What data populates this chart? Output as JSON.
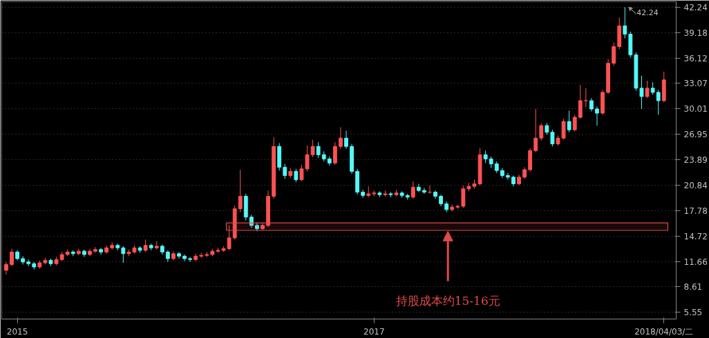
{
  "chart_data": {
    "type": "candlestick",
    "categories": [
      null,
      null,
      "2015",
      null,
      null,
      null,
      null,
      null,
      null,
      null,
      null,
      null,
      null,
      null,
      null,
      null,
      null,
      null,
      null,
      null,
      null,
      null,
      null,
      null,
      null,
      null,
      null,
      null,
      null,
      null,
      null,
      null,
      null,
      null,
      null,
      null,
      null,
      null,
      null,
      null,
      null,
      null,
      null,
      null,
      null,
      null,
      null,
      null,
      null,
      null,
      null,
      null,
      null,
      null,
      null,
      null,
      null,
      null,
      null,
      null,
      null,
      null,
      null,
      null,
      null,
      null,
      "2017",
      null,
      null,
      null,
      null,
      null,
      null,
      null,
      null,
      null,
      null,
      null,
      null,
      null,
      null,
      null,
      null,
      null,
      null,
      null,
      null,
      null,
      null,
      null,
      null,
      null,
      null,
      null,
      null,
      null,
      null,
      null,
      null,
      null,
      null,
      null,
      null,
      null,
      null,
      null,
      null,
      null,
      null,
      null,
      null,
      null,
      null,
      null,
      null,
      null,
      null,
      null,
      "2018/04/03/二"
    ],
    "ohlc": [
      [
        10.6,
        11.6,
        10.1,
        11.3
      ],
      [
        11.3,
        13.2,
        11.1,
        12.8
      ],
      [
        12.8,
        13.0,
        11.8,
        12.0
      ],
      [
        12.0,
        12.3,
        11.3,
        11.6
      ],
      [
        11.6,
        11.9,
        11.1,
        11.4
      ],
      [
        11.4,
        11.6,
        10.7,
        11.0
      ],
      [
        11.0,
        11.8,
        10.8,
        11.5
      ],
      [
        11.5,
        12.1,
        11.3,
        11.8
      ],
      [
        11.8,
        12.0,
        11.1,
        11.4
      ],
      [
        11.4,
        12.2,
        11.2,
        11.9
      ],
      [
        11.9,
        12.8,
        11.7,
        12.5
      ],
      [
        12.5,
        13.1,
        12.3,
        12.8
      ],
      [
        12.8,
        13.0,
        12.3,
        12.6
      ],
      [
        12.6,
        13.2,
        12.4,
        12.9
      ],
      [
        12.9,
        13.1,
        12.2,
        12.5
      ],
      [
        12.5,
        13.2,
        12.3,
        12.9
      ],
      [
        12.9,
        13.4,
        12.7,
        13.1
      ],
      [
        13.1,
        13.3,
        12.5,
        12.8
      ],
      [
        12.8,
        13.6,
        12.6,
        13.3
      ],
      [
        13.3,
        14.0,
        13.1,
        13.6
      ],
      [
        13.6,
        13.8,
        13.0,
        13.3
      ],
      [
        13.3,
        13.5,
        11.5,
        12.6
      ],
      [
        12.6,
        13.1,
        12.3,
        12.8
      ],
      [
        12.8,
        13.6,
        12.6,
        13.3
      ],
      [
        13.3,
        13.5,
        12.7,
        13.0
      ],
      [
        13.0,
        14.3,
        12.8,
        13.6
      ],
      [
        13.6,
        13.8,
        13.0,
        13.3
      ],
      [
        13.3,
        14.1,
        13.1,
        13.5
      ],
      [
        13.5,
        13.7,
        12.5,
        12.8
      ],
      [
        12.8,
        13.0,
        11.6,
        12.0
      ],
      [
        12.0,
        12.9,
        11.8,
        12.6
      ],
      [
        12.6,
        12.8,
        12.0,
        12.3
      ],
      [
        12.3,
        12.5,
        11.7,
        12.0
      ],
      [
        12.0,
        12.2,
        11.6,
        11.9
      ],
      [
        11.9,
        12.6,
        11.7,
        12.3
      ],
      [
        12.3,
        12.7,
        12.1,
        12.4
      ],
      [
        12.4,
        12.8,
        12.2,
        12.5
      ],
      [
        12.5,
        13.2,
        12.3,
        12.9
      ],
      [
        12.9,
        13.3,
        12.7,
        13.0
      ],
      [
        13.0,
        13.5,
        12.8,
        13.2
      ],
      [
        13.2,
        16.0,
        13.0,
        14.5
      ],
      [
        14.5,
        18.4,
        14.3,
        18.0
      ],
      [
        18.0,
        22.7,
        17.6,
        19.5
      ],
      [
        19.5,
        19.8,
        16.6,
        17.0
      ],
      [
        17.0,
        17.3,
        15.7,
        16.0
      ],
      [
        16.0,
        16.3,
        15.3,
        15.6
      ],
      [
        15.6,
        16.3,
        15.4,
        16.0
      ],
      [
        16.0,
        20.2,
        15.8,
        19.5
      ],
      [
        19.5,
        26.6,
        19.2,
        25.5
      ],
      [
        25.5,
        25.9,
        22.6,
        23.0
      ],
      [
        23.0,
        23.4,
        21.6,
        22.0
      ],
      [
        22.0,
        22.9,
        21.7,
        22.5
      ],
      [
        22.5,
        22.8,
        21.2,
        21.5
      ],
      [
        21.5,
        23.3,
        21.3,
        22.8
      ],
      [
        22.8,
        25.6,
        22.5,
        24.5
      ],
      [
        24.5,
        26.3,
        24.2,
        25.5
      ],
      [
        25.5,
        26.0,
        24.1,
        24.5
      ],
      [
        24.5,
        24.9,
        23.7,
        24.0
      ],
      [
        24.0,
        24.3,
        23.2,
        23.5
      ],
      [
        23.5,
        26.0,
        23.3,
        25.5
      ],
      [
        25.5,
        27.8,
        25.2,
        26.5
      ],
      [
        26.5,
        27.4,
        25.2,
        25.5
      ],
      [
        25.5,
        25.8,
        22.2,
        22.5
      ],
      [
        22.5,
        22.8,
        19.7,
        20.0
      ],
      [
        20.0,
        20.3,
        19.3,
        19.6
      ],
      [
        19.6,
        20.7,
        19.4,
        19.8
      ],
      [
        19.8,
        20.2,
        19.5,
        19.9
      ],
      [
        19.9,
        20.1,
        19.4,
        19.7
      ],
      [
        19.7,
        20.2,
        19.5,
        19.8
      ],
      [
        19.8,
        20.0,
        19.4,
        19.7
      ],
      [
        19.7,
        20.3,
        19.5,
        19.9
      ],
      [
        19.9,
        20.1,
        19.3,
        19.6
      ],
      [
        19.6,
        19.8,
        19.1,
        19.4
      ],
      [
        19.4,
        21.3,
        19.2,
        20.6
      ],
      [
        20.6,
        21.0,
        20.0,
        20.2
      ],
      [
        20.2,
        20.5,
        19.8,
        20.0
      ],
      [
        20.0,
        20.8,
        19.8,
        20.0
      ],
      [
        20.0,
        20.2,
        19.2,
        19.5
      ],
      [
        19.5,
        19.7,
        18.3,
        18.6
      ],
      [
        18.6,
        18.9,
        17.6,
        17.9
      ],
      [
        17.9,
        18.5,
        17.7,
        18.2
      ],
      [
        18.2,
        18.5,
        18.0,
        18.3
      ],
      [
        18.3,
        20.8,
        18.1,
        20.4
      ],
      [
        20.4,
        21.1,
        20.1,
        20.7
      ],
      [
        20.7,
        21.5,
        20.4,
        21.0
      ],
      [
        21.0,
        25.3,
        20.8,
        24.5
      ],
      [
        24.5,
        25.0,
        23.5,
        24.0
      ],
      [
        24.0,
        24.3,
        22.9,
        23.4
      ],
      [
        23.4,
        23.7,
        22.3,
        22.6
      ],
      [
        22.6,
        22.9,
        21.7,
        22.0
      ],
      [
        22.0,
        22.3,
        21.5,
        21.8
      ],
      [
        21.8,
        22.0,
        20.7,
        21.0
      ],
      [
        21.0,
        22.1,
        20.8,
        21.8
      ],
      [
        21.8,
        23.0,
        21.6,
        22.7
      ],
      [
        22.7,
        25.3,
        22.5,
        25.0
      ],
      [
        25.0,
        30.0,
        24.8,
        26.5
      ],
      [
        26.5,
        28.3,
        26.2,
        28.0
      ],
      [
        28.0,
        28.3,
        26.9,
        27.2
      ],
      [
        27.2,
        27.5,
        25.5,
        25.8
      ],
      [
        25.8,
        26.8,
        25.6,
        26.5
      ],
      [
        26.5,
        28.8,
        26.3,
        28.5
      ],
      [
        28.5,
        29.8,
        27.2,
        27.5
      ],
      [
        27.5,
        29.3,
        27.3,
        29.0
      ],
      [
        29.0,
        32.9,
        28.8,
        31.0
      ],
      [
        31.0,
        32.5,
        30.2,
        31.0
      ],
      [
        31.0,
        31.3,
        29.7,
        30.0
      ],
      [
        30.0,
        30.3,
        28.0,
        29.5
      ],
      [
        29.5,
        32.3,
        29.3,
        32.0
      ],
      [
        32.0,
        36.0,
        31.8,
        35.5
      ],
      [
        35.5,
        38.0,
        35.2,
        37.5
      ],
      [
        37.5,
        41.0,
        37.2,
        40.0
      ],
      [
        40.0,
        42.24,
        38.5,
        39.0
      ],
      [
        39.0,
        39.3,
        36.2,
        36.5
      ],
      [
        36.5,
        36.8,
        32.2,
        32.5
      ],
      [
        32.5,
        34.0,
        30.0,
        31.5
      ],
      [
        31.5,
        33.4,
        31.3,
        32.5
      ],
      [
        32.5,
        33.2,
        31.7,
        32.0
      ],
      [
        32.0,
        32.3,
        29.3,
        31.0
      ],
      [
        31.0,
        34.5,
        30.8,
        33.5
      ]
    ],
    "ylim": [
      4.74,
      42.9
    ],
    "yticks": [
      5.55,
      8.61,
      11.66,
      14.72,
      17.78,
      20.84,
      23.89,
      26.95,
      30.01,
      33.07,
      36.12,
      39.18,
      42.24
    ],
    "grid": "y",
    "bands": [
      {
        "axis": "y",
        "from": 15.4,
        "to": 16.3,
        "label": "持股成本约15-16元",
        "color": "#e04a4a"
      }
    ],
    "annotations": [
      "42.24"
    ]
  }
}
